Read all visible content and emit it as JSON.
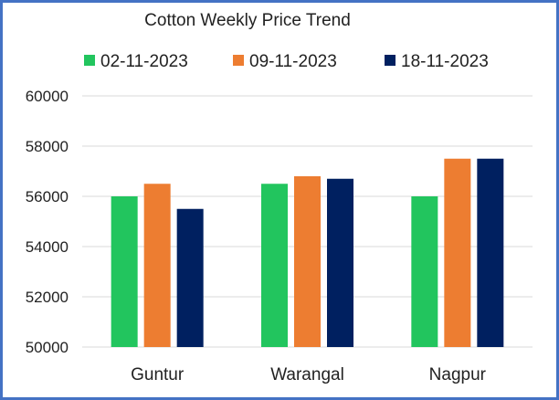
{
  "chart_data": {
    "type": "bar",
    "title": "Cotton Weekly Price Trend",
    "categories": [
      "Guntur",
      "Warangal",
      "Nagpur"
    ],
    "series": [
      {
        "name": "02-11-2023",
        "color": "#22c55e",
        "values": [
          56000,
          56500,
          56000
        ]
      },
      {
        "name": "09-11-2023",
        "color": "#ed7d31",
        "values": [
          56500,
          56800,
          57500
        ]
      },
      {
        "name": "18-11-2023",
        "color": "#002060",
        "values": [
          55500,
          56700,
          57500
        ]
      }
    ],
    "ylim": [
      50000,
      60000
    ],
    "yticks": [
      50000,
      52000,
      54000,
      56000,
      58000,
      60000
    ],
    "xlabel": "",
    "ylabel": "",
    "grid": true,
    "legend_position": "top"
  }
}
